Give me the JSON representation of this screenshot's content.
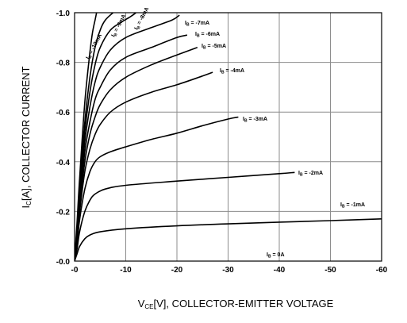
{
  "chart_data": {
    "type": "line",
    "title": "",
    "xlabel": {
      "main": "V",
      "sub": "CE",
      "rest": "[V], COLLECTOR-EMITTER VOLTAGE"
    },
    "ylabel": {
      "main": "I",
      "sub": "C",
      "rest": "[A], COLLECTOR CURRENT"
    },
    "xlim": [
      0,
      -60
    ],
    "ylim": [
      0,
      -1.0
    ],
    "x_ticks": [
      0,
      -10,
      -20,
      -30,
      -40,
      -50,
      -60
    ],
    "x_tick_labels": [
      "-0",
      "-10",
      "-20",
      "-30",
      "-40",
      "-50",
      "-60"
    ],
    "y_ticks": [
      0,
      -0.2,
      -0.4,
      -0.6,
      -0.8,
      -1.0
    ],
    "y_tick_labels": [
      "-0.0",
      "-0.2",
      "-0.4",
      "-0.6",
      "-0.8",
      "-1.0"
    ],
    "grid": true,
    "series": [
      {
        "name": "IB = 0A",
        "label": {
          "pre": "I",
          "sub": "B",
          "post": " = 0A"
        },
        "points": [
          [
            0,
            0
          ],
          [
            0,
            0
          ]
        ]
      },
      {
        "name": "IB = -1mA",
        "label": {
          "pre": "I",
          "sub": "B",
          "post": " = -1mA"
        },
        "points": [
          [
            0,
            0
          ],
          [
            -0.5,
            -0.03
          ],
          [
            -1,
            -0.06
          ],
          [
            -2,
            -0.09
          ],
          [
            -3,
            -0.105
          ],
          [
            -5,
            -0.118
          ],
          [
            -10,
            -0.13
          ],
          [
            -20,
            -0.142
          ],
          [
            -30,
            -0.15
          ],
          [
            -40,
            -0.157
          ],
          [
            -50,
            -0.163
          ],
          [
            -60,
            -0.17
          ]
        ]
      },
      {
        "name": "IB = -2mA",
        "label": {
          "pre": "I",
          "sub": "B",
          "post": " = -2mA"
        },
        "points": [
          [
            0,
            0
          ],
          [
            -0.5,
            -0.05
          ],
          [
            -1,
            -0.12
          ],
          [
            -2,
            -0.2
          ],
          [
            -3,
            -0.245
          ],
          [
            -4,
            -0.27
          ],
          [
            -6,
            -0.29
          ],
          [
            -10,
            -0.305
          ],
          [
            -20,
            -0.322
          ],
          [
            -30,
            -0.337
          ],
          [
            -40,
            -0.352
          ],
          [
            -43,
            -0.357
          ]
        ]
      },
      {
        "name": "IB = -3mA",
        "label": {
          "pre": "I",
          "sub": "B",
          "post": " = -3mA"
        },
        "points": [
          [
            0,
            0
          ],
          [
            -0.5,
            -0.07
          ],
          [
            -1,
            -0.17
          ],
          [
            -2,
            -0.29
          ],
          [
            -3,
            -0.36
          ],
          [
            -4,
            -0.4
          ],
          [
            -5,
            -0.42
          ],
          [
            -7,
            -0.44
          ],
          [
            -10,
            -0.46
          ],
          [
            -15,
            -0.49
          ],
          [
            -20,
            -0.515
          ],
          [
            -25,
            -0.545
          ],
          [
            -30,
            -0.572
          ],
          [
            -32,
            -0.58
          ]
        ]
      },
      {
        "name": "IB = -4mA",
        "label": {
          "pre": "I",
          "sub": "B",
          "post": " = -4mA"
        },
        "points": [
          [
            0,
            0
          ],
          [
            -0.5,
            -0.09
          ],
          [
            -1,
            -0.2
          ],
          [
            -2,
            -0.36
          ],
          [
            -3,
            -0.45
          ],
          [
            -4,
            -0.51
          ],
          [
            -5,
            -0.55
          ],
          [
            -7,
            -0.6
          ],
          [
            -10,
            -0.64
          ],
          [
            -15,
            -0.68
          ],
          [
            -20,
            -0.71
          ],
          [
            -25,
            -0.745
          ],
          [
            -27,
            -0.76
          ]
        ]
      },
      {
        "name": "IB = -5mA",
        "label": {
          "pre": "I",
          "sub": "B",
          "post": " = -5mA"
        },
        "points": [
          [
            0,
            0
          ],
          [
            -0.5,
            -0.1
          ],
          [
            -1,
            -0.22
          ],
          [
            -2,
            -0.4
          ],
          [
            -3,
            -0.51
          ],
          [
            -4,
            -0.58
          ],
          [
            -5,
            -0.63
          ],
          [
            -7,
            -0.69
          ],
          [
            -10,
            -0.74
          ],
          [
            -15,
            -0.79
          ],
          [
            -20,
            -0.83
          ],
          [
            -24,
            -0.86
          ]
        ]
      },
      {
        "name": "IB = -6mA",
        "label": {
          "pre": "I",
          "sub": "B",
          "post": " = -6mA"
        },
        "points": [
          [
            0,
            0
          ],
          [
            -0.5,
            -0.11
          ],
          [
            -1,
            -0.24
          ],
          [
            -2,
            -0.44
          ],
          [
            -3,
            -0.56
          ],
          [
            -4,
            -0.65
          ],
          [
            -5,
            -0.7
          ],
          [
            -7,
            -0.77
          ],
          [
            -10,
            -0.82
          ],
          [
            -15,
            -0.86
          ],
          [
            -20,
            -0.9
          ],
          [
            -22,
            -0.91
          ]
        ]
      },
      {
        "name": "IB = -7mA",
        "label": {
          "pre": "I",
          "sub": "B",
          "post": " = -7mA"
        },
        "points": [
          [
            0,
            0
          ],
          [
            -0.5,
            -0.12
          ],
          [
            -1,
            -0.26
          ],
          [
            -2,
            -0.48
          ],
          [
            -3,
            -0.62
          ],
          [
            -4,
            -0.72
          ],
          [
            -5,
            -0.78
          ],
          [
            -7,
            -0.85
          ],
          [
            -10,
            -0.9
          ],
          [
            -15,
            -0.94
          ],
          [
            -19,
            -0.97
          ],
          [
            -20.5,
            -0.99
          ]
        ]
      },
      {
        "name": "IB = -8mA",
        "label": {
          "pre": "I",
          "sub": "B",
          "post": " = -8mA"
        },
        "points": [
          [
            0,
            0
          ],
          [
            -0.5,
            -0.13
          ],
          [
            -1,
            -0.28
          ],
          [
            -2,
            -0.52
          ],
          [
            -3,
            -0.68
          ],
          [
            -4,
            -0.79
          ],
          [
            -5,
            -0.86
          ],
          [
            -7,
            -0.93
          ],
          [
            -9,
            -0.96
          ],
          [
            -11,
            -0.985
          ],
          [
            -12,
            -1.0
          ]
        ]
      },
      {
        "name": "IB = -9mA",
        "label": {
          "pre": "I",
          "sub": "B",
          "post": " = -9mA"
        },
        "points": [
          [
            0,
            0
          ],
          [
            -0.5,
            -0.14
          ],
          [
            -1,
            -0.3
          ],
          [
            -2,
            -0.56
          ],
          [
            -3,
            -0.74
          ],
          [
            -4,
            -0.86
          ],
          [
            -5,
            -0.93
          ],
          [
            -6,
            -0.97
          ],
          [
            -7.5,
            -1.0
          ]
        ]
      },
      {
        "name": "IB = -10mA",
        "label": {
          "pre": "I",
          "sub": "B",
          "post": " = -10mA"
        },
        "points": [
          [
            0,
            0
          ],
          [
            -0.5,
            -0.16
          ],
          [
            -1,
            -0.34
          ],
          [
            -2,
            -0.64
          ],
          [
            -3,
            -0.84
          ],
          [
            -3.5,
            -0.92
          ],
          [
            -4,
            -0.97
          ],
          [
            -4.3,
            -1.0
          ]
        ]
      }
    ]
  }
}
